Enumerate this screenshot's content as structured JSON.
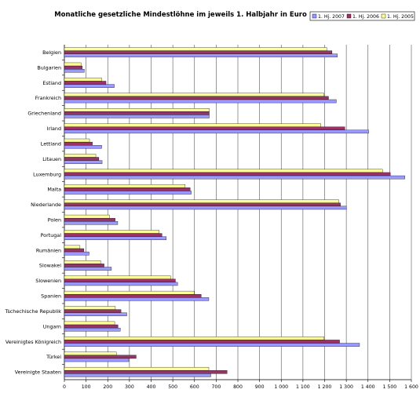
{
  "chart_data": {
    "type": "bar",
    "orientation": "horizontal",
    "title": "Monatliche gesetzliche Mindestlöhne im jeweils 1. Halbjahr in Euro",
    "categories": [
      "Belgien",
      "Bulgarien",
      "Estland",
      "Frankreich",
      "Griechenland",
      "Irland",
      "Lettland",
      "Litauen",
      "Luxemburg",
      "Malta",
      "Niederlande",
      "Polen",
      "Portugal",
      "Rumänien",
      "Slowakei",
      "Slowenien",
      "Spanien",
      "Tschechische Republik",
      "Ungarn",
      "Vereinigtes Königreich",
      "Türkei",
      "Vereinigte Staaten"
    ],
    "series": [
      {
        "name": "1. Hj. 2007",
        "color": "#9999ff",
        "values": [
          1259,
          92,
          230,
          1254,
          668,
          1403,
          172,
          174,
          1570,
          585,
          1301,
          246,
          470,
          114,
          217,
          522,
          666,
          288,
          258,
          1361,
          297,
          675
        ]
      },
      {
        "name": "1. Hj. 2006",
        "color": "#993366",
        "values": [
          1234,
          82,
          192,
          1218,
          668,
          1293,
          129,
          159,
          1503,
          580,
          1273,
          234,
          450,
          90,
          183,
          512,
          631,
          261,
          247,
          1269,
          331,
          750
        ]
      },
      {
        "name": "1. Hj. 2005",
        "color": "#ffff99",
        "values": [
          1210,
          77,
          172,
          1197,
          668,
          1183,
          116,
          145,
          1467,
          557,
          1265,
          208,
          437,
          72,
          167,
          490,
          599,
          235,
          232,
          1197,
          240,
          666
        ]
      }
    ],
    "xlim": [
      0,
      1600
    ],
    "xticks": [
      "0",
      "100",
      "200",
      "300",
      "400",
      "500",
      "600",
      "700",
      "800",
      "900",
      "1 000",
      "1 100",
      "1 200",
      "1 300",
      "1 400",
      "1 500",
      "1 600"
    ],
    "grid": "vertical",
    "legend": "top-right"
  }
}
